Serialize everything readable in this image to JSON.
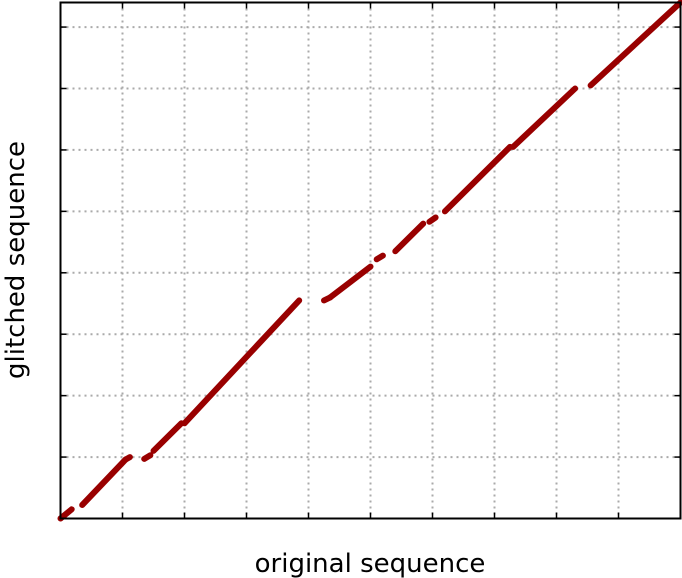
{
  "chart_data": {
    "type": "line",
    "title": "",
    "xlabel": "original sequence",
    "ylabel": "glitched sequence",
    "xlim": [
      0,
      10
    ],
    "ylim": [
      0,
      8.4
    ],
    "x_gridlines": [
      1,
      2,
      3,
      4,
      5,
      6,
      7,
      8,
      9
    ],
    "y_gridlines": [
      1,
      2,
      3,
      4,
      5,
      6,
      7,
      8
    ],
    "grid": true,
    "legend": "none",
    "colors": {
      "line": "#990000",
      "grid": "#aaaaaa",
      "frame": "#000000"
    },
    "series": [
      {
        "name": "glitched sequence",
        "segments": [
          {
            "x": [
              0.0,
              0.18
            ],
            "y": [
              0.0,
              0.15
            ]
          },
          {
            "x": [
              0.35,
              1.05
            ],
            "y": [
              0.22,
              0.96
            ]
          },
          {
            "x": [
              1.05,
              1.12
            ],
            "y": [
              0.96,
              1.0
            ]
          },
          {
            "x": [
              1.35,
              1.45
            ],
            "y": [
              0.97,
              1.03
            ]
          },
          {
            "x": [
              1.5,
              1.95
            ],
            "y": [
              1.1,
              1.55
            ]
          },
          {
            "x": [
              2.0,
              3.85
            ],
            "y": [
              1.55,
              3.55
            ]
          },
          {
            "x": [
              4.25,
              4.35
            ],
            "y": [
              3.55,
              3.6
            ]
          },
          {
            "x": [
              4.35,
              5.0
            ],
            "y": [
              3.6,
              4.1
            ]
          },
          {
            "x": [
              5.1,
              5.2
            ],
            "y": [
              4.22,
              4.28
            ]
          },
          {
            "x": [
              5.4,
              5.85
            ],
            "y": [
              4.35,
              4.8
            ]
          },
          {
            "x": [
              5.95,
              6.05
            ],
            "y": [
              4.83,
              4.9
            ]
          },
          {
            "x": [
              6.2,
              7.25
            ],
            "y": [
              5.0,
              6.05
            ]
          },
          {
            "x": [
              7.3,
              8.3
            ],
            "y": [
              6.05,
              7.0
            ]
          },
          {
            "x": [
              8.55,
              10.0
            ],
            "y": [
              7.05,
              8.4
            ]
          }
        ]
      }
    ]
  }
}
